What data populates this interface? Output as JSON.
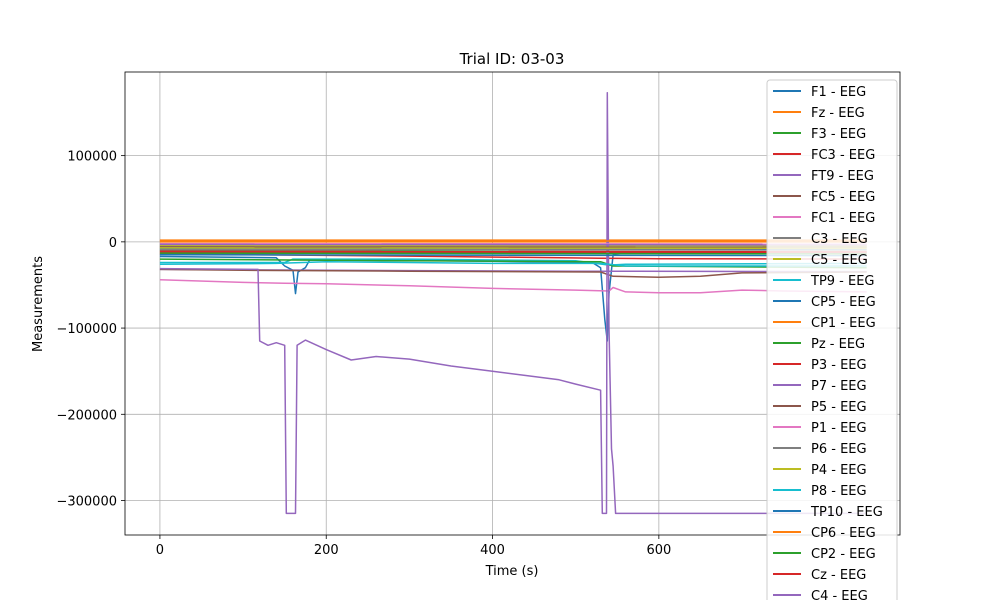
{
  "chart_data": {
    "type": "line",
    "title": "Trial ID: 03-03",
    "xlabel": "Time (s)",
    "ylabel": "Measurements",
    "xlim": [
      -42,
      890
    ],
    "ylim": [
      -340000,
      197000
    ],
    "xticks": [
      0,
      200,
      400,
      600
    ],
    "yticks": [
      -300000,
      -200000,
      -100000,
      0,
      100000
    ],
    "ytick_labels": [
      "−300000",
      "−200000",
      "−100000",
      "0",
      "100000"
    ],
    "grid": true,
    "legend_position": "top-right",
    "series": [
      {
        "name": "F1 - EEG",
        "color": "#1f77b4",
        "points": [
          [
            0,
            -17000
          ],
          [
            140,
            -18500
          ],
          [
            150,
            -28000
          ],
          [
            160,
            -33000
          ],
          [
            163,
            -60000
          ],
          [
            166,
            -35000
          ],
          [
            175,
            -30000
          ],
          [
            180,
            -21000
          ],
          [
            300,
            -21500
          ],
          [
            400,
            -22500
          ],
          [
            520,
            -24000
          ],
          [
            530,
            -30000
          ],
          [
            535,
            -90000
          ],
          [
            538,
            -115000
          ],
          [
            540,
            -60000
          ],
          [
            545,
            -15000
          ],
          [
            560,
            -12000
          ],
          [
            700,
            -12000
          ],
          [
            850,
            -12500
          ]
        ]
      },
      {
        "name": "Fz - EEG",
        "color": "#ff7f0e",
        "points": [
          [
            0,
            0
          ],
          [
            850,
            0
          ]
        ]
      },
      {
        "name": "F3 - EEG",
        "color": "#2ca02c",
        "points": [
          [
            0,
            -10000
          ],
          [
            300,
            -11000
          ],
          [
            600,
            -11500
          ],
          [
            850,
            -11500
          ]
        ]
      },
      {
        "name": "FC3 - EEG",
        "color": "#d62728",
        "points": [
          [
            0,
            -14000
          ],
          [
            300,
            -16500
          ],
          [
            530,
            -19000
          ],
          [
            600,
            -19500
          ],
          [
            850,
            -20000
          ]
        ]
      },
      {
        "name": "FT9 - EEG",
        "color": "#9467bd",
        "points": [
          [
            0,
            -32000
          ],
          [
            200,
            -33000
          ],
          [
            500,
            -34000
          ],
          [
            850,
            -34500
          ]
        ]
      },
      {
        "name": "FC5 - EEG",
        "color": "#8c564b",
        "points": [
          [
            0,
            -32000
          ],
          [
            100,
            -33000
          ],
          [
            300,
            -34000
          ],
          [
            530,
            -35000
          ],
          [
            545,
            -40000
          ],
          [
            600,
            -41000
          ],
          [
            650,
            -40000
          ],
          [
            700,
            -36000
          ],
          [
            850,
            -35000
          ]
        ]
      },
      {
        "name": "FC1 - EEG",
        "color": "#e377c2",
        "points": [
          [
            0,
            -44000
          ],
          [
            100,
            -47000
          ],
          [
            150,
            -48000
          ],
          [
            200,
            -48500
          ],
          [
            300,
            -51000
          ],
          [
            400,
            -54000
          ],
          [
            500,
            -56000
          ],
          [
            540,
            -57000
          ],
          [
            545,
            -53000
          ],
          [
            560,
            -58000
          ],
          [
            600,
            -59000
          ],
          [
            650,
            -59000
          ],
          [
            700,
            -56000
          ],
          [
            750,
            -57000
          ],
          [
            850,
            -58000
          ]
        ]
      },
      {
        "name": "C3 - EEG",
        "color": "#7f7f7f",
        "points": [
          [
            0,
            -5000
          ],
          [
            850,
            -5500
          ]
        ]
      },
      {
        "name": "C5 - EEG",
        "color": "#bcbd22",
        "points": [
          [
            0,
            -4000
          ],
          [
            850,
            -4500
          ]
        ]
      },
      {
        "name": "TP9 - EEG",
        "color": "#17becf",
        "points": [
          [
            0,
            -24000
          ],
          [
            150,
            -24000
          ],
          [
            160,
            -20000
          ],
          [
            300,
            -20000
          ],
          [
            500,
            -22000
          ],
          [
            540,
            -27000
          ],
          [
            560,
            -26000
          ],
          [
            850,
            -25000
          ]
        ]
      },
      {
        "name": "CP5 - EEG",
        "color": "#1f77b4",
        "points": [
          [
            0,
            -8000
          ],
          [
            850,
            -9000
          ]
        ]
      },
      {
        "name": "CP1 - EEG",
        "color": "#ff7f0e",
        "points": [
          [
            0,
            2000
          ],
          [
            850,
            2000
          ]
        ]
      },
      {
        "name": "Pz - EEG",
        "color": "#2ca02c",
        "points": [
          [
            0,
            -20000
          ],
          [
            300,
            -22000
          ],
          [
            530,
            -23000
          ],
          [
            545,
            -28000
          ],
          [
            850,
            -30000
          ]
        ]
      },
      {
        "name": "P3 - EEG",
        "color": "#d62728",
        "points": [
          [
            0,
            -12000
          ],
          [
            850,
            -13000
          ]
        ]
      },
      {
        "name": "P7 - EEG",
        "color": "#9467bd",
        "points": [
          [
            0,
            -31000
          ],
          [
            118,
            -32000
          ],
          [
            120,
            -115000
          ],
          [
            130,
            -120000
          ],
          [
            140,
            -117000
          ],
          [
            150,
            -120000
          ],
          [
            152,
            -315000
          ],
          [
            163,
            -315000
          ],
          [
            165,
            -120000
          ],
          [
            175,
            -114000
          ],
          [
            200,
            -125000
          ],
          [
            230,
            -137000
          ],
          [
            260,
            -133000
          ],
          [
            300,
            -136000
          ],
          [
            350,
            -144000
          ],
          [
            400,
            -150000
          ],
          [
            440,
            -155000
          ],
          [
            480,
            -160000
          ],
          [
            500,
            -165000
          ],
          [
            530,
            -172000
          ],
          [
            532,
            -315000
          ],
          [
            537,
            -315000
          ],
          [
            538,
            173000
          ],
          [
            540,
            -100000
          ],
          [
            543,
            -240000
          ],
          [
            545,
            -260000
          ],
          [
            548,
            -315000
          ],
          [
            600,
            -315000
          ],
          [
            700,
            -315000
          ],
          [
            850,
            -315000
          ]
        ]
      },
      {
        "name": "P5 - EEG",
        "color": "#8c564b",
        "points": [
          [
            0,
            -6000
          ],
          [
            850,
            -6500
          ]
        ]
      },
      {
        "name": "P1 - EEG",
        "color": "#e377c2",
        "points": [
          [
            0,
            -2000
          ],
          [
            850,
            -2500
          ]
        ]
      },
      {
        "name": "P6 - EEG",
        "color": "#7f7f7f",
        "points": [
          [
            0,
            -9000
          ],
          [
            850,
            -9500
          ]
        ]
      },
      {
        "name": "P4 - EEG",
        "color": "#bcbd22",
        "points": [
          [
            0,
            -7000
          ],
          [
            850,
            -7500
          ]
        ]
      },
      {
        "name": "P8 - EEG",
        "color": "#17becf",
        "points": [
          [
            0,
            -26000
          ],
          [
            140,
            -25000
          ],
          [
            200,
            -23000
          ],
          [
            400,
            -25000
          ],
          [
            530,
            -25000
          ],
          [
            560,
            -28000
          ],
          [
            850,
            -28000
          ]
        ]
      },
      {
        "name": "TP10 - EEG",
        "color": "#1f77b4",
        "points": [
          [
            0,
            -15000
          ],
          [
            850,
            -16000
          ]
        ]
      },
      {
        "name": "CP6 - EEG",
        "color": "#ff7f0e",
        "points": [
          [
            0,
            1000
          ],
          [
            850,
            1000
          ]
        ]
      },
      {
        "name": "CP2 - EEG",
        "color": "#2ca02c",
        "points": [
          [
            0,
            -13000
          ],
          [
            850,
            -14000
          ]
        ]
      },
      {
        "name": "Cz - EEG",
        "color": "#d62728",
        "points": [
          [
            0,
            -11000
          ],
          [
            850,
            -11500
          ]
        ]
      },
      {
        "name": "C4 - EEG",
        "color": "#9467bd",
        "points": [
          [
            0,
            -3000
          ],
          [
            850,
            -3500
          ]
        ]
      }
    ]
  }
}
